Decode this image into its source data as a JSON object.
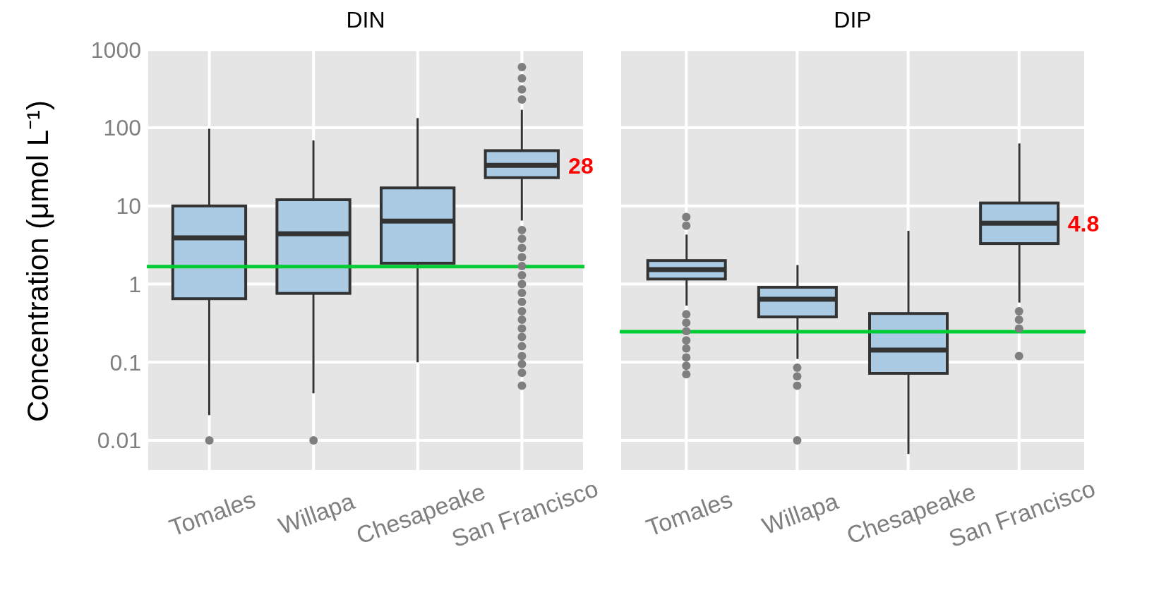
{
  "chart_data": [
    {
      "type": "box",
      "title": "DIN",
      "ylabel": "Concentration (μmol L⁻¹)",
      "categories": [
        "Tomales",
        "Willapa",
        "Chesapeake",
        "San Francisco"
      ],
      "color": "#abcbe5",
      "log": true,
      "grid": true,
      "ylim": [
        0.004,
        1050
      ],
      "yticks": [
        0.01,
        0.1,
        1,
        10,
        100,
        1000
      ],
      "boxes": [
        {
          "low": 0.021,
          "q1": 0.65,
          "median": 3.9,
          "q3": 10,
          "high": 97,
          "outliers": [
            0.01
          ]
        },
        {
          "low": 0.04,
          "q1": 0.76,
          "median": 4.4,
          "q3": 12,
          "high": 69,
          "outliers": [
            0.01
          ]
        },
        {
          "low": 0.1,
          "q1": 1.85,
          "median": 6.4,
          "q3": 17,
          "high": 133
        },
        {
          "low": 6.5,
          "q1": 23,
          "median": 33,
          "q3": 51,
          "high": 170,
          "outliers": [
            0.05,
            0.073,
            0.095,
            0.12,
            0.16,
            0.21,
            0.27,
            0.35,
            0.45,
            0.59,
            0.77,
            1,
            1.3,
            1.7,
            2.2,
            2.9,
            3.8,
            4.9,
            230,
            310,
            430,
            600
          ]
        }
      ],
      "ref_lines": [
        {
          "axis": "y",
          "value": 1.67,
          "color": "#00cc33"
        }
      ],
      "annotations": [
        "28"
      ]
    },
    {
      "type": "box",
      "title": "DIP",
      "categories": [
        "Tomales",
        "Willapa",
        "Chesapeake",
        "San Francisco"
      ],
      "color": "#abcbe5",
      "log": true,
      "grid": true,
      "tick_labels": "x",
      "ylim": [
        0.004,
        1050
      ],
      "yticks": [
        0.01,
        0.1,
        1,
        10,
        100,
        1000
      ],
      "boxes": [
        {
          "low": 0.53,
          "q1": 1.16,
          "median": 1.53,
          "q3": 2.0,
          "high": 4.3,
          "outliers": [
            0.07,
            0.09,
            0.115,
            0.15,
            0.19,
            0.25,
            0.32,
            0.41,
            5.6,
            7.2
          ]
        },
        {
          "low": 0.11,
          "q1": 0.38,
          "median": 0.64,
          "q3": 0.91,
          "high": 1.75,
          "outliers": [
            0.01,
            0.05,
            0.066,
            0.085
          ]
        },
        {
          "low": 0.0067,
          "q1": 0.072,
          "median": 0.143,
          "q3": 0.42,
          "high": 4.8
        },
        {
          "low": 0.58,
          "q1": 3.3,
          "median": 6.0,
          "q3": 10.9,
          "high": 63,
          "outliers": [
            0.12,
            0.27,
            0.35,
            0.45
          ]
        }
      ],
      "ref_lines": [
        {
          "axis": "y",
          "value": 0.246,
          "color": "#00cc33"
        }
      ],
      "annotations": [
        "4.8"
      ]
    }
  ]
}
